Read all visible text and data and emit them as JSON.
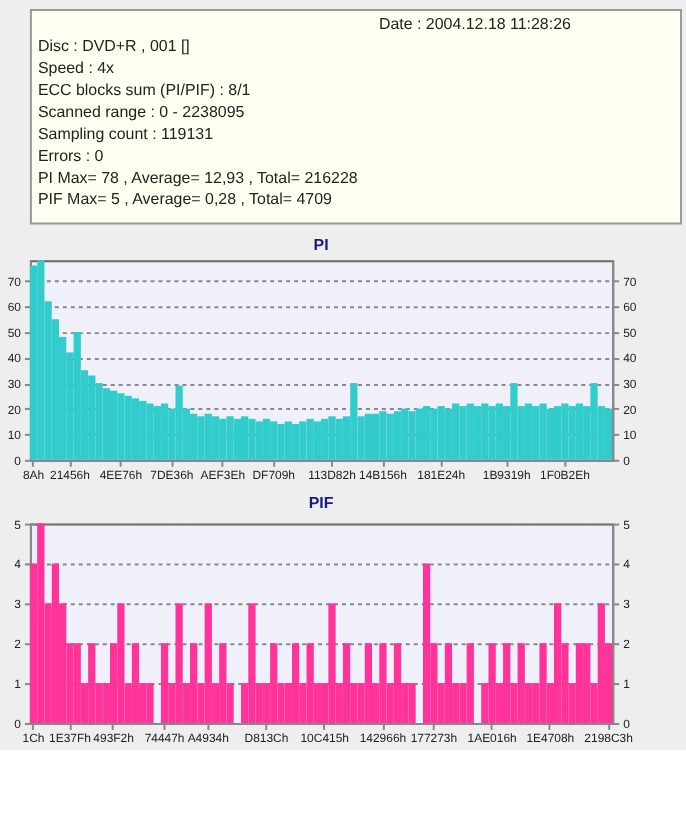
{
  "chart_data": [
    {
      "type": "other",
      "annotations": [
        "Date : 2004.12.18 11:28:26",
        "Disc : DVD+R , 001 []",
        "Speed : 4x",
        "ECC blocks sum (PI/PIF) : 8/1",
        "Scanned range : 0 - 2238095",
        "Sampling count : 119131",
        "Errors : 0",
        "PI Max= 78 , Average= 12,93 , Total= 216228",
        "PIF Max= 5 , Average= 0,28 , Total= 4709"
      ]
    },
    {
      "type": "bar",
      "title": "PI",
      "color": "#33cccc",
      "grid": "y",
      "categories": [
        "8Ah",
        null,
        null,
        null,
        null,
        "21456h",
        null,
        null,
        null,
        null,
        null,
        null,
        "4EE76h",
        null,
        null,
        null,
        null,
        null,
        null,
        "7DE36h",
        null,
        null,
        null,
        null,
        null,
        null,
        "AEF3Eh",
        null,
        null,
        null,
        null,
        null,
        null,
        "DF709h",
        null,
        null,
        null,
        null,
        null,
        null,
        null,
        "113D82h",
        null,
        null,
        null,
        null,
        null,
        null,
        "14B156h",
        null,
        null,
        null,
        null,
        null,
        null,
        null,
        "181E24h",
        null,
        null,
        null,
        null,
        null,
        null,
        null,
        null,
        "1B9319h",
        null,
        null,
        null,
        null,
        null,
        null,
        null,
        "1F0B2Eh",
        null,
        null,
        null,
        null,
        null,
        null
      ],
      "values": [
        76,
        78,
        62,
        55,
        48,
        42,
        50,
        35,
        33,
        30,
        28,
        27,
        26,
        25,
        24,
        23,
        22,
        21,
        22,
        20,
        29,
        20,
        18,
        17,
        18,
        17,
        16,
        17,
        16,
        17,
        16,
        15,
        16,
        15,
        14,
        15,
        14,
        15,
        16,
        15,
        16,
        17,
        16,
        17,
        30,
        17,
        18,
        18,
        19,
        18,
        19,
        20,
        19,
        20,
        21,
        20,
        21,
        20,
        22,
        21,
        22,
        21,
        22,
        21,
        22,
        21,
        30,
        21,
        22,
        21,
        22,
        20,
        21,
        22,
        21,
        22,
        21,
        30,
        21,
        20
      ],
      "ylim": [
        0,
        78
      ],
      "yticks": [
        0,
        10,
        20,
        30,
        40,
        50,
        60,
        70
      ],
      "y2lim": [
        0,
        78
      ],
      "y2ticks": [
        0,
        10,
        20,
        30,
        40,
        50,
        60,
        70
      ]
    },
    {
      "type": "bar",
      "title": "PIF",
      "color": "#ff3399",
      "grid": "y",
      "categories": [
        "1Ch",
        null,
        null,
        null,
        null,
        "1E37Fh",
        null,
        null,
        null,
        null,
        null,
        "493F2h",
        null,
        null,
        null,
        null,
        null,
        null,
        "74447h",
        null,
        null,
        null,
        null,
        null,
        "A4934h",
        null,
        null,
        null,
        null,
        null,
        null,
        null,
        "D813Ch",
        null,
        null,
        null,
        null,
        null,
        null,
        null,
        "10C415h",
        null,
        null,
        null,
        null,
        null,
        null,
        null,
        "142966h",
        null,
        null,
        null,
        null,
        null,
        null,
        "177273h",
        null,
        null,
        null,
        null,
        null,
        null,
        null,
        "1AE016h",
        null,
        null,
        null,
        null,
        null,
        null,
        null,
        "1E4708h",
        null,
        null,
        null,
        null,
        null,
        null,
        null,
        "2198C3h"
      ],
      "values": [
        4,
        5,
        3,
        4,
        3,
        2,
        2,
        1,
        2,
        1,
        1,
        2,
        3,
        1,
        2,
        1,
        1,
        0,
        2,
        1,
        3,
        1,
        2,
        1,
        3,
        1,
        2,
        1,
        0,
        1,
        3,
        1,
        1,
        2,
        1,
        1,
        2,
        1,
        2,
        1,
        1,
        3,
        1,
        2,
        1,
        1,
        2,
        1,
        2,
        1,
        2,
        1,
        1,
        0,
        4,
        2,
        1,
        2,
        1,
        1,
        2,
        0,
        1,
        2,
        1,
        2,
        1,
        2,
        1,
        1,
        2,
        1,
        3,
        2,
        1,
        2,
        2,
        1,
        3,
        2
      ],
      "ylim": [
        0,
        5
      ],
      "yticks": [
        0,
        1,
        2,
        3,
        4,
        5
      ],
      "y2lim": [
        0,
        5
      ],
      "y2ticks": [
        0,
        1,
        2,
        3,
        4,
        5
      ]
    }
  ]
}
